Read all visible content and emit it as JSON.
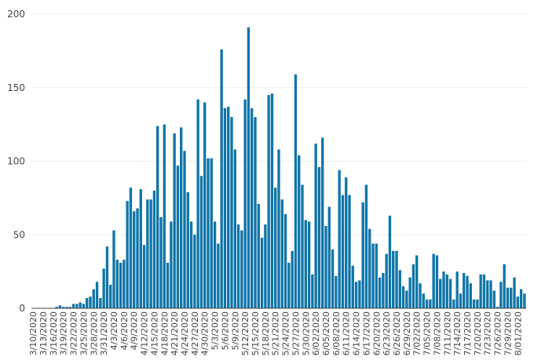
{
  "chart_data": {
    "type": "bar",
    "title": "",
    "xlabel": "",
    "ylabel": "",
    "ylim": [
      0,
      200
    ],
    "yticks": [
      0,
      50,
      100,
      150,
      200
    ],
    "grid": true,
    "bar_color": "#0f75a8",
    "x_tick_labels": [
      "3/10/2020",
      "3/13/2020",
      "3/16/2020",
      "3/19/2020",
      "3/22/2020",
      "3/25/2020",
      "3/28/2020",
      "3/31/2020",
      "4/3/2020",
      "4/6/2020",
      "4/9/2020",
      "4/12/2020",
      "4/15/2020",
      "4/18/2020",
      "4/21/2020",
      "4/24/2020",
      "4/27/2020",
      "4/30/2020",
      "5/3/2020",
      "5/6/2020",
      "5/9/2020",
      "5/12/2020",
      "5/15/2020",
      "5/18/2020",
      "5/21/2020",
      "5/24/2020",
      "5/27/2020",
      "5/30/2020",
      "6/02/2020",
      "6/05/2020",
      "6/08/2020",
      "6/11/2020",
      "6/14/2020",
      "6/17/2020",
      "6/20/2020",
      "6/23/2020",
      "6/26/2020",
      "6/29/2020",
      "7/02/2020",
      "7/05/2020",
      "7/08/2020",
      "7/11/2020",
      "7/14/2020",
      "7/17/2020",
      "7/20/2020",
      "7/23/2020",
      "7/26/2020",
      "7/29/2020",
      "8/01/2020"
    ],
    "x_tick_step": 3,
    "values": [
      0,
      0,
      0,
      0,
      0,
      0,
      0,
      1,
      2,
      1,
      1,
      1,
      3,
      3,
      4,
      3,
      7,
      8,
      13,
      18,
      7,
      27,
      42,
      16,
      53,
      33,
      31,
      33,
      73,
      82,
      66,
      68,
      81,
      43,
      74,
      74,
      80,
      124,
      62,
      125,
      31,
      59,
      119,
      97,
      123,
      107,
      79,
      59,
      50,
      142,
      90,
      140,
      102,
      102,
      59,
      44,
      176,
      136,
      137,
      130,
      108,
      57,
      53,
      142,
      191,
      136,
      130,
      71,
      48,
      57,
      145,
      146,
      82,
      108,
      74,
      64,
      31,
      39,
      159,
      104,
      84,
      60,
      59,
      23,
      112,
      96,
      116,
      56,
      69,
      40,
      22,
      94,
      77,
      89,
      77,
      29,
      18,
      19,
      72,
      84,
      54,
      44,
      44,
      21,
      24,
      37,
      63,
      39,
      39,
      26,
      15,
      12,
      21,
      30,
      36,
      17,
      10,
      6,
      6,
      37,
      36,
      20,
      25,
      23,
      20,
      6,
      25,
      10,
      24,
      22,
      17,
      6,
      6,
      23,
      23,
      19,
      19,
      12,
      1,
      18,
      30,
      14,
      14,
      21,
      8,
      13,
      10
    ]
  }
}
